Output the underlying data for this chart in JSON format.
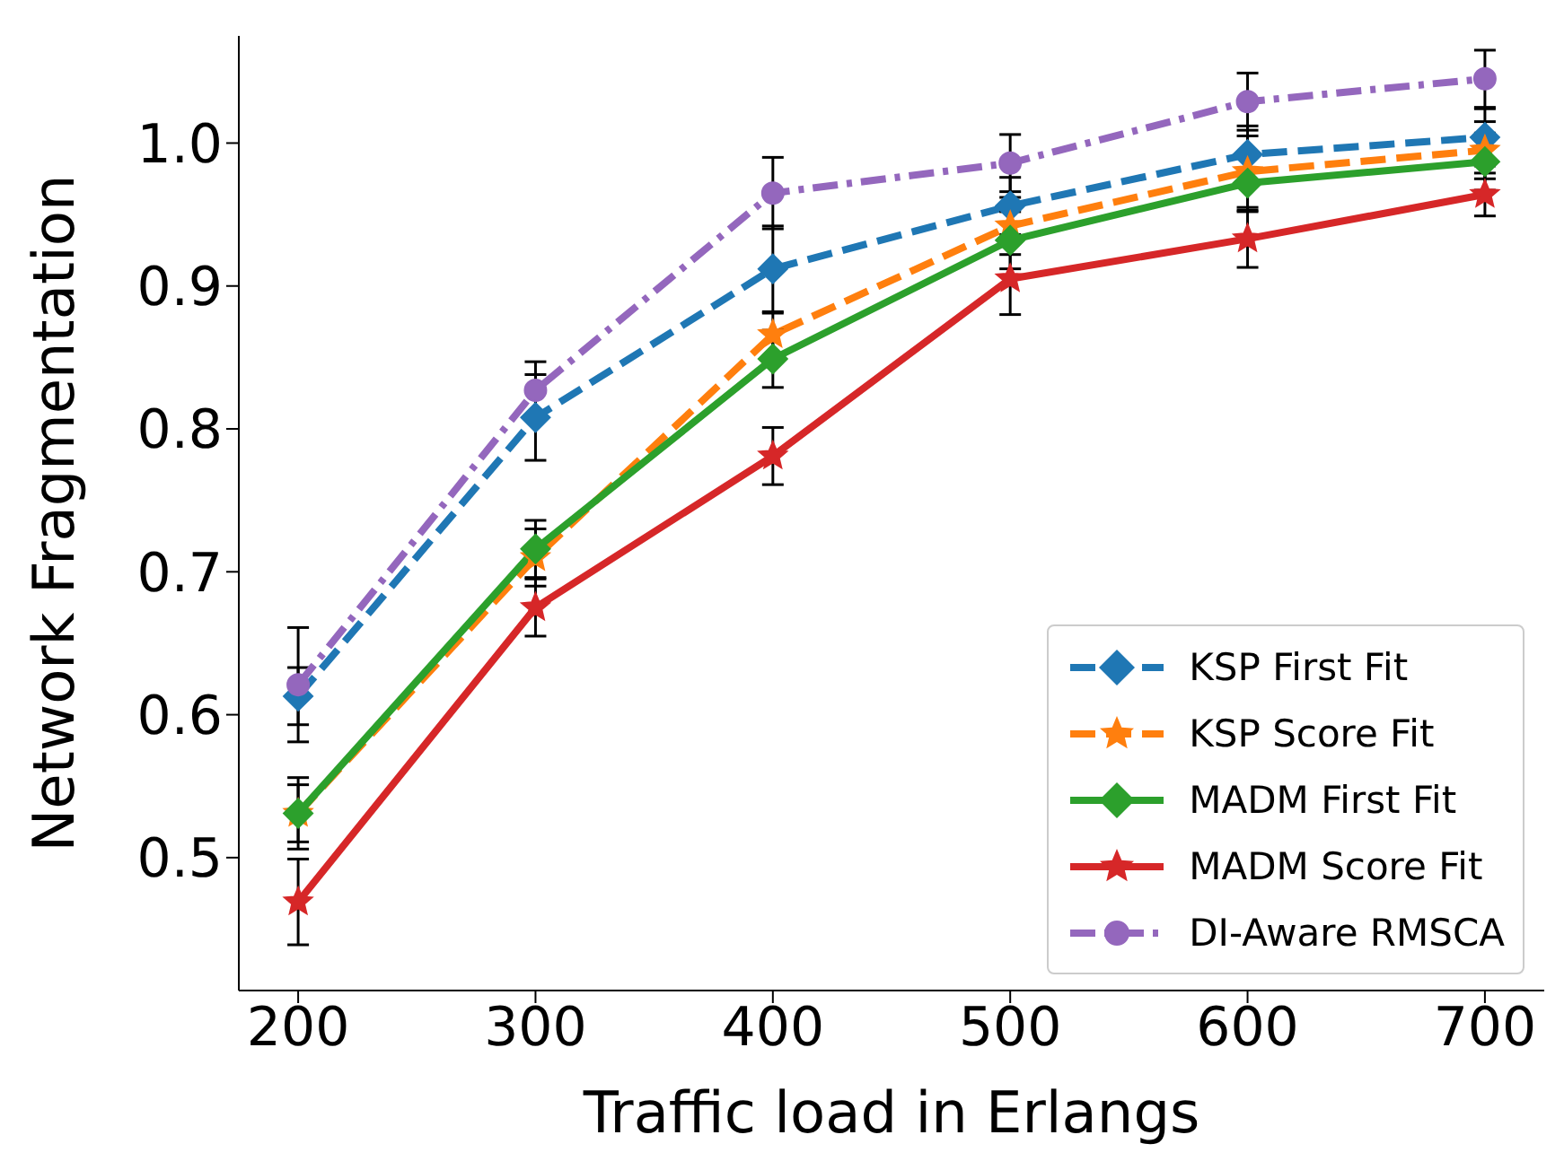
{
  "chart_data": {
    "type": "line",
    "xlabel": "Traffic load in Erlangs",
    "ylabel": "Network Fragmentation",
    "x": [
      200,
      300,
      400,
      500,
      600,
      700
    ],
    "xlim": [
      175,
      725
    ],
    "xticks": [
      200,
      300,
      400,
      500,
      600,
      700
    ],
    "ylim": [
      0.407,
      1.075
    ],
    "yticks": [
      0.5,
      0.6,
      0.7,
      0.8,
      0.9,
      {
        "value": 1,
        "label": "1.0"
      }
    ],
    "grid": false,
    "legend": "bottom right",
    "series": [
      {
        "name": "KSP First Fit",
        "color": "#1f77b4",
        "marker": "diamond",
        "line_style": "dashed",
        "values": [
          0.613,
          0.808,
          0.912,
          0.956,
          0.992,
          1.004
        ],
        "errors": [
          0.02,
          0.03,
          0.03,
          0.02,
          0.02,
          0.02
        ]
      },
      {
        "name": "KSP Score Fit",
        "color": "#ff7f0e",
        "marker": "star",
        "line_style": "dashed",
        "values": [
          0.531,
          0.71,
          0.866,
          0.942,
          0.98,
          0.995
        ],
        "errors": [
          0.02,
          0.02,
          0.015,
          0.02,
          0.025,
          0.02
        ]
      },
      {
        "name": "MADM First Fit",
        "color": "#2ca02c",
        "marker": "diamond",
        "line_style": "solid",
        "values": [
          0.531,
          0.716,
          0.849,
          0.932,
          0.972,
          0.987
        ],
        "errors": [
          0.025,
          0.02,
          0.02,
          0.02,
          0.02,
          0.02
        ]
      },
      {
        "name": "MADM Score Fit",
        "color": "#d62728",
        "marker": "star",
        "line_style": "solid",
        "values": [
          0.469,
          0.675,
          0.781,
          0.905,
          0.933,
          0.964
        ],
        "errors": [
          0.03,
          0.02,
          0.02,
          0.025,
          0.02,
          0.015
        ]
      },
      {
        "name": "DI-Aware RMSCA",
        "color": "#9467bd",
        "marker": "circle",
        "line_style": "dashdot",
        "values": [
          0.621,
          0.827,
          0.965,
          0.986,
          1.029,
          1.045
        ],
        "errors": [
          0.04,
          0.02,
          0.025,
          0.02,
          0.02,
          0.02
        ]
      }
    ]
  }
}
